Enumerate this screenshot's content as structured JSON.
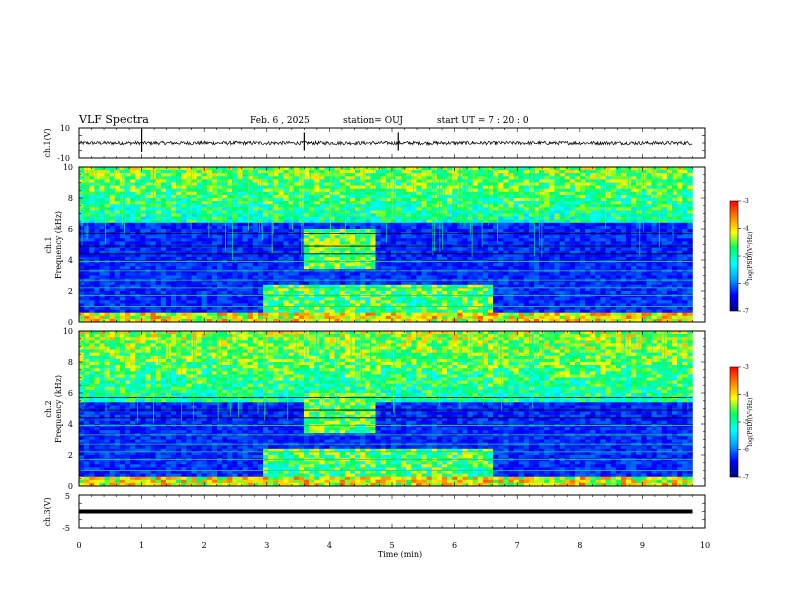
{
  "header": {
    "title": "VLF Spectra",
    "date": "Feb. 6 , 2025",
    "station": "station= OUJ",
    "start": "start  UT =  7 : 20 : 0"
  },
  "chart_data": [
    {
      "id": "ch1-waveform",
      "type": "line",
      "ylabel": "ch.1(V)",
      "ylim": [
        -10,
        10
      ],
      "yticks": [
        10,
        -10
      ],
      "xlim": [
        0,
        10
      ],
      "baseline": 0,
      "noise_amplitude": 1.2,
      "spikes_min": [
        1.0,
        5.1,
        3.6
      ]
    },
    {
      "id": "ch1-spectrogram",
      "type": "heatmap",
      "ylabel": "ch.1\nFrequency (kHz)",
      "ylim": [
        0,
        10
      ],
      "yticks": [
        "0",
        "2",
        "4",
        "6",
        "8",
        "10"
      ],
      "xlim": [
        0,
        10
      ],
      "data_xmax": 9.8,
      "colorbar": {
        "label": "log(PSD)(V²/Hz)",
        "ticks": [
          "-3",
          "-4",
          "-5",
          "-6",
          "-7"
        ],
        "range": [
          -7,
          -3
        ]
      },
      "features": {
        "sferic_band_khz": [
          6.5,
          10
        ],
        "event_minutes": [
          3.6,
          4.7
        ],
        "event_band_khz": [
          3.5,
          6.0
        ],
        "lowfreq_enhancement_minutes": [
          2.9,
          6.6
        ]
      }
    },
    {
      "id": "ch2-spectrogram",
      "type": "heatmap",
      "ylabel": "ch.2\nFrequency (kHz)",
      "ylim": [
        0,
        10
      ],
      "yticks": [
        "0",
        "2",
        "4",
        "6",
        "8",
        "10"
      ],
      "xlim": [
        0,
        10
      ],
      "data_xmax": 9.8,
      "colorbar": {
        "label": "log(PSD)(V²/Hz)",
        "ticks": [
          "-3",
          "-4",
          "-5",
          "-6",
          "-7"
        ],
        "range": [
          -7,
          -3
        ]
      },
      "features": {
        "sferic_band_khz": [
          5.5,
          10
        ],
        "event_minutes": [
          3.6,
          4.7
        ],
        "event_band_khz": [
          3.5,
          6.0
        ],
        "lowfreq_enhancement_minutes": [
          2.9,
          6.6
        ]
      }
    },
    {
      "id": "ch3-waveform",
      "type": "line",
      "ylabel": "ch.3(V)",
      "ylim": [
        -5,
        5
      ],
      "yticks": [
        5,
        -5
      ],
      "xlim": [
        0,
        10
      ],
      "baseline": 0,
      "noise_amplitude": 0.3
    }
  ],
  "xaxis": {
    "label": "Time (min)",
    "ticks": [
      "0",
      "1",
      "2",
      "3",
      "4",
      "5",
      "6",
      "7",
      "8",
      "9",
      "10"
    ]
  },
  "colors": {
    "colormap": [
      "#000080",
      "#0000ff",
      "#00a0ff",
      "#00ffff",
      "#00ff60",
      "#ffff00",
      "#ff8000",
      "#ff0000"
    ]
  }
}
